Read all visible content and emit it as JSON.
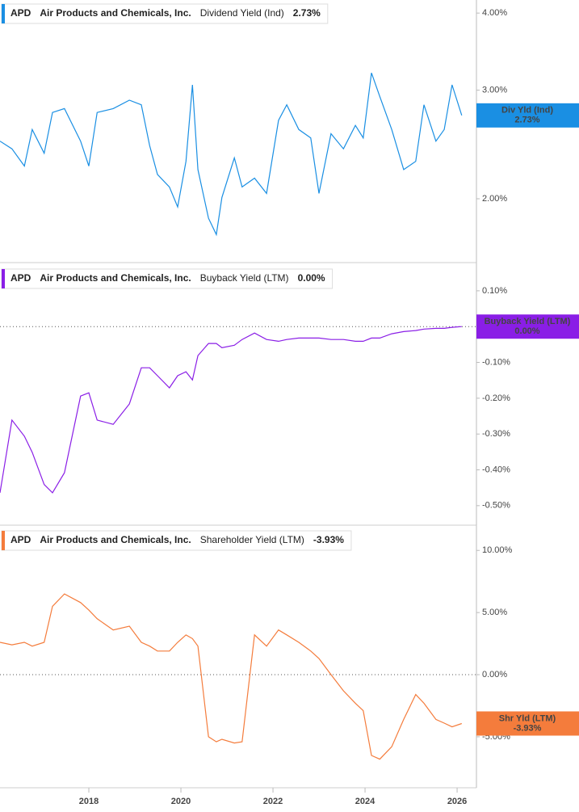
{
  "chart_data": [
    {
      "type": "line",
      "ticker": "APD",
      "company": "Air Products and Chemicals, Inc.",
      "log": true,
      "zero_line": false,
      "x": [
        2016.07,
        2016.33,
        2016.6,
        2016.77,
        2017.03,
        2017.21,
        2017.47,
        2017.82,
        2018.0,
        2018.18,
        2018.53,
        2018.88,
        2019.14,
        2019.32,
        2019.49,
        2019.75,
        2019.93,
        2020.11,
        2020.25,
        2020.37,
        2020.6,
        2020.77,
        2020.89,
        2021.16,
        2021.33,
        2021.6,
        2021.86,
        2022.12,
        2022.3,
        2022.56,
        2022.82,
        2023.0,
        2023.26,
        2023.53,
        2023.79,
        2023.96,
        2024.14,
        2024.32,
        2024.58,
        2024.84,
        2025.1,
        2025.28,
        2025.54,
        2025.72,
        2025.89,
        2026.1
      ],
      "xlim": [
        2016.07,
        2026.42
      ],
      "ylim": [
        1.6,
        4.2
      ],
      "yticks": [
        {
          "value": 2,
          "label": "2.00%"
        },
        {
          "value": 3,
          "label": "3.00%"
        },
        {
          "value": 4,
          "label": "4.00%"
        }
      ],
      "series": [
        {
          "name": "Dividend Yield (Ind)",
          "short_name": "Div Yld (Ind)",
          "color": "#1a8fe3",
          "values": [
            2.48,
            2.41,
            2.26,
            2.59,
            2.37,
            2.76,
            2.8,
            2.48,
            2.26,
            2.76,
            2.8,
            2.89,
            2.84,
            2.44,
            2.19,
            2.09,
            1.94,
            2.3,
            3.06,
            2.23,
            1.86,
            1.75,
            2.01,
            2.33,
            2.09,
            2.16,
            2.04,
            2.68,
            2.84,
            2.59,
            2.51,
            2.04,
            2.55,
            2.41,
            2.63,
            2.51,
            3.2,
            2.93,
            2.59,
            2.23,
            2.3,
            2.84,
            2.48,
            2.59,
            3.06,
            2.73
          ],
          "current_value": 2.73,
          "current_label": "2.73%"
        }
      ]
    },
    {
      "type": "line",
      "ticker": "APD",
      "company": "Air Products and Chemicals, Inc.",
      "log": false,
      "zero_line": true,
      "x": [
        2016.07,
        2016.33,
        2016.6,
        2016.77,
        2017.03,
        2017.21,
        2017.47,
        2017.82,
        2018.0,
        2018.18,
        2018.53,
        2018.88,
        2019.14,
        2019.32,
        2019.49,
        2019.75,
        2019.93,
        2020.11,
        2020.25,
        2020.37,
        2020.6,
        2020.77,
        2020.89,
        2021.16,
        2021.33,
        2021.6,
        2021.86,
        2022.12,
        2022.3,
        2022.56,
        2022.82,
        2023.0,
        2023.26,
        2023.53,
        2023.79,
        2023.96,
        2024.14,
        2024.32,
        2024.58,
        2024.84,
        2025.1,
        2025.28,
        2025.54,
        2025.72,
        2025.89,
        2026.1
      ],
      "xlim": [
        2016.07,
        2026.42
      ],
      "ylim": [
        -0.55,
        0.172
      ],
      "yticks": [
        {
          "value": -0.5,
          "label": "-0.50%"
        },
        {
          "value": -0.4,
          "label": "-0.40%"
        },
        {
          "value": -0.3,
          "label": "-0.30%"
        },
        {
          "value": -0.2,
          "label": "-0.20%"
        },
        {
          "value": -0.1,
          "label": "-0.10%"
        },
        {
          "value": 0.1,
          "label": "0.10%"
        }
      ],
      "series": [
        {
          "name": "Buyback Yield (LTM)",
          "short_name": "Buyback Yield (LTM)",
          "color": "#8a1ee6",
          "values": [
            -0.464,
            -0.261,
            -0.306,
            -0.351,
            -0.441,
            -0.464,
            -0.408,
            -0.194,
            -0.185,
            -0.261,
            -0.273,
            -0.216,
            -0.115,
            -0.115,
            -0.137,
            -0.171,
            -0.137,
            -0.126,
            -0.149,
            -0.081,
            -0.047,
            -0.047,
            -0.059,
            -0.052,
            -0.036,
            -0.018,
            -0.036,
            -0.041,
            -0.036,
            -0.032,
            -0.032,
            -0.032,
            -0.036,
            -0.036,
            -0.041,
            -0.041,
            -0.032,
            -0.032,
            -0.02,
            -0.014,
            -0.011,
            -0.007,
            -0.005,
            -0.005,
            -0.002,
            0.0
          ],
          "current_value": 0.0,
          "current_label": "0.00%"
        }
      ]
    },
    {
      "type": "line",
      "ticker": "APD",
      "company": "Air Products and Chemicals, Inc.",
      "log": false,
      "zero_line": true,
      "x": [
        2016.07,
        2016.33,
        2016.6,
        2016.77,
        2017.03,
        2017.21,
        2017.47,
        2017.82,
        2018.0,
        2018.18,
        2018.53,
        2018.88,
        2019.14,
        2019.32,
        2019.49,
        2019.75,
        2019.93,
        2020.11,
        2020.25,
        2020.37,
        2020.6,
        2020.77,
        2020.89,
        2021.16,
        2021.33,
        2021.6,
        2021.86,
        2022.12,
        2022.3,
        2022.56,
        2022.82,
        2023.0,
        2023.26,
        2023.53,
        2023.79,
        2023.96,
        2024.14,
        2024.32,
        2024.58,
        2024.84,
        2025.1,
        2025.28,
        2025.54,
        2025.72,
        2025.89,
        2026.1
      ],
      "xlim": [
        2016.07,
        2026.42
      ],
      "xticks": [
        2018,
        2020,
        2022,
        2024,
        2026
      ],
      "ylim": [
        -9.1,
        11.9
      ],
      "yticks": [
        {
          "value": -5,
          "label": "-5.00%"
        },
        {
          "value": 0,
          "label": "0.00%"
        },
        {
          "value": 5,
          "label": "5.00%"
        },
        {
          "value": 10,
          "label": "10.00%"
        }
      ],
      "series": [
        {
          "name": "Shareholder Yield (LTM)",
          "short_name": "Shr Yld (LTM)",
          "color": "#f47c3c",
          "values": [
            2.6,
            2.4,
            2.6,
            2.3,
            2.6,
            5.5,
            6.5,
            5.8,
            5.2,
            4.5,
            3.6,
            3.9,
            2.6,
            2.3,
            1.9,
            1.9,
            2.6,
            3.2,
            2.9,
            2.3,
            -5.0,
            -5.4,
            -5.2,
            -5.5,
            -5.4,
            3.2,
            2.3,
            3.6,
            3.2,
            2.6,
            1.9,
            1.3,
            0.0,
            -1.3,
            -2.3,
            -2.9,
            -6.5,
            -6.8,
            -5.8,
            -3.6,
            -1.6,
            -2.3,
            -3.6,
            -3.9,
            -4.2,
            -3.93
          ],
          "current_value": -3.93,
          "current_label": "-3.93%"
        }
      ]
    }
  ]
}
